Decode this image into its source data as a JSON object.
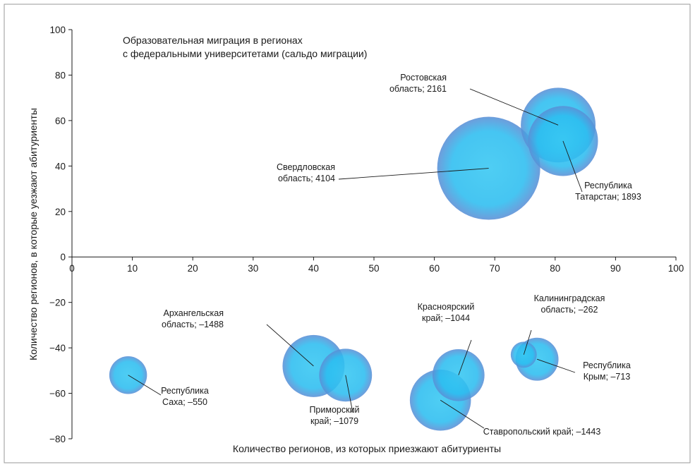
{
  "chart_data": {
    "type": "bubble",
    "title_lines": [
      "Образовательная миграция в регионах",
      "с федеральными университетами (сальдо миграции)"
    ],
    "xlabel": "Количество регионов, из которых приезжают абитуриенты",
    "ylabel": "Количество регионов, в которые уезжают абитуриенты",
    "xlim": [
      0,
      100
    ],
    "ylim": [
      -80,
      100
    ],
    "x_ticks": [
      "0",
      "10",
      "20",
      "30",
      "40",
      "50",
      "60",
      "70",
      "80",
      "90",
      "100"
    ],
    "y_ticks": [
      "100",
      "80",
      "60",
      "40",
      "20",
      "0",
      "-20",
      "-40",
      "-60",
      "-80"
    ],
    "grid": false,
    "colors": {
      "bubble_center": "#36c7f2",
      "bubble_edge": "#5a8fd6",
      "frame": "#9a9a9a"
    },
    "points": [
      {
        "id": "sverdlovsk",
        "x": 69,
        "y": 39,
        "size": 4104,
        "label_lines": [
          "Свердловская",
          "область; 4104"
        ]
      },
      {
        "id": "rostov",
        "x": 80.5,
        "y": 58,
        "size": 2161,
        "label_lines": [
          "Ростовская",
          "область; 2161"
        ]
      },
      {
        "id": "tatarstan",
        "x": 81.3,
        "y": 51,
        "size": 1893,
        "label_lines": [
          "Республика",
          "Татарстан; 1893"
        ]
      },
      {
        "id": "sakha",
        "x": 9.3,
        "y": -52,
        "size": 550,
        "label_lines": [
          "Республика",
          "Саха; –550"
        ]
      },
      {
        "id": "arkhangelsk",
        "x": 40,
        "y": -48,
        "size": 1488,
        "label_lines": [
          "Архангельская",
          "область; –1488"
        ]
      },
      {
        "id": "primorsky",
        "x": 45.3,
        "y": -52,
        "size": 1079,
        "label_lines": [
          "Приморский",
          "край; –1079"
        ]
      },
      {
        "id": "krasnoyarsk",
        "x": 64,
        "y": -52,
        "size": 1044,
        "label_lines": [
          "Красноярский",
          "край; –1044"
        ]
      },
      {
        "id": "stavropol",
        "x": 61,
        "y": -63,
        "size": 1443,
        "label_lines": [
          "Ставропольский край; –1443"
        ]
      },
      {
        "id": "kaliningrad",
        "x": 74.8,
        "y": -43,
        "size": 262,
        "label_lines": [
          "Калининградская",
          "область; –262"
        ]
      },
      {
        "id": "crimea",
        "x": 77,
        "y": -45,
        "size": 713,
        "label_lines": [
          "Республика",
          "Крым; –713"
        ]
      }
    ]
  }
}
